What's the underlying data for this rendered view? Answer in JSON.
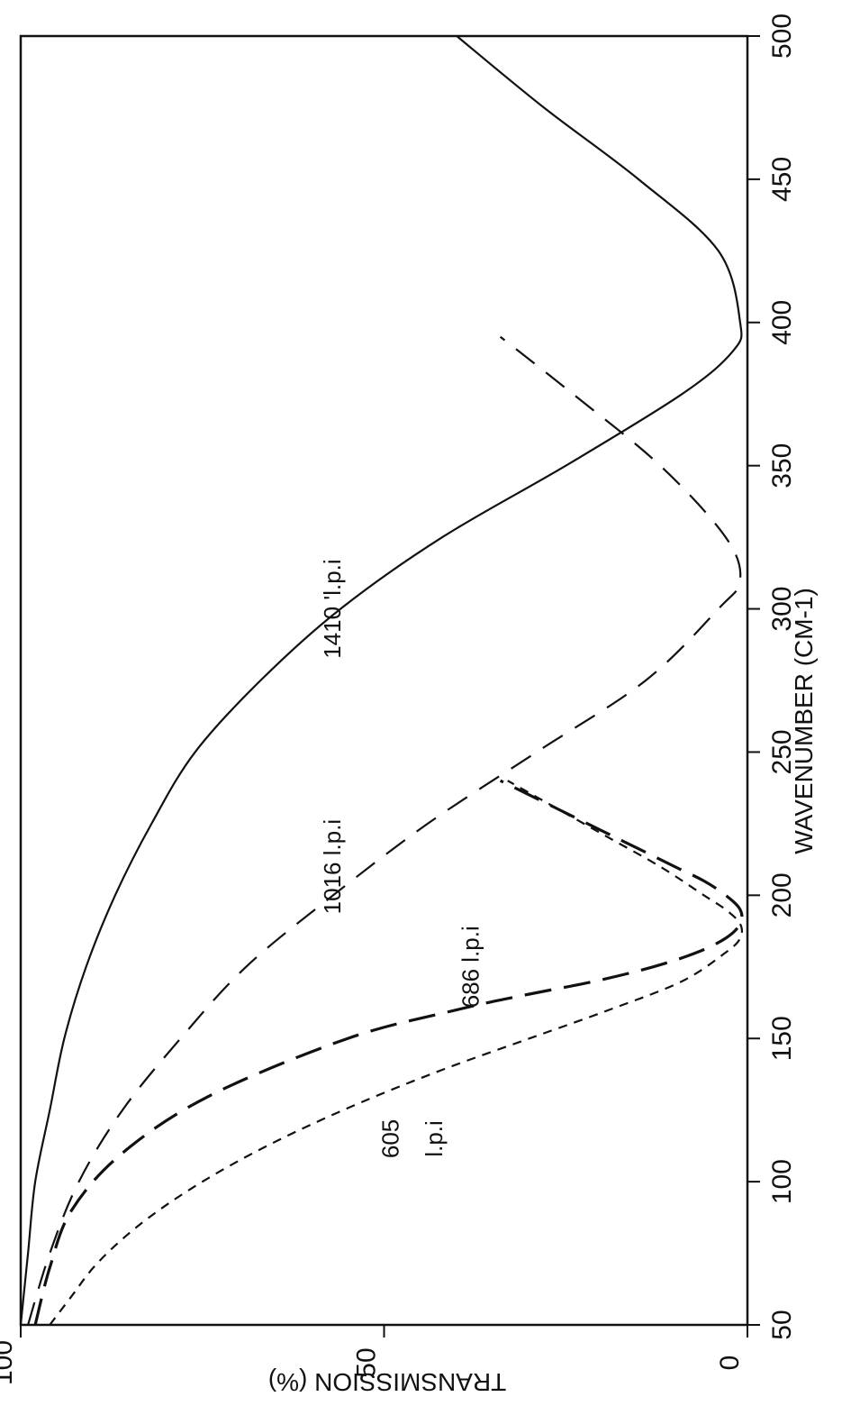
{
  "chart_data": {
    "type": "line",
    "orientation": "rotated 90 degrees counter-clockwise",
    "xlabel": "WAVENUMBER (CM-1)",
    "ylabel": "TRANSMISSION (%)",
    "xlim": [
      50,
      500
    ],
    "ylim": [
      0,
      100
    ],
    "x_ticks": [
      "50",
      "100",
      "150",
      "200",
      "250",
      "300",
      "350",
      "400",
      "450",
      "500"
    ],
    "y_ticks": [
      "0",
      "50",
      "100"
    ],
    "grid": false,
    "legend": "none (curves labeled directly)",
    "series": [
      {
        "name": "605 l.p.i",
        "style": "short-dash",
        "x": [
          50,
          60,
          70,
          80,
          90,
          100,
          110,
          120,
          130,
          140,
          150,
          160,
          170,
          180,
          185,
          190,
          195,
          200,
          210,
          220,
          230,
          240
        ],
        "y": [
          96,
          93,
          90,
          86,
          81,
          75,
          68,
          60,
          51,
          41,
          30,
          19,
          9,
          3,
          1,
          1,
          3,
          6,
          12,
          19,
          26,
          33
        ]
      },
      {
        "name": "686 l.p.i",
        "style": "long-dash",
        "x": [
          50,
          70,
          90,
          110,
          130,
          150,
          160,
          165,
          170,
          175,
          180,
          185,
          190,
          195,
          200,
          205,
          210,
          220,
          230,
          240
        ],
        "y": [
          98,
          96,
          93,
          86,
          74,
          55,
          40,
          31,
          21,
          13,
          7,
          3,
          1,
          1,
          3,
          6,
          10,
          18,
          26,
          34
        ]
      },
      {
        "name": "1016 l.p.i",
        "style": "dash",
        "x": [
          50,
          75,
          100,
          125,
          150,
          175,
          200,
          225,
          250,
          275,
          300,
          310,
          325,
          350,
          375,
          395
        ],
        "y": [
          99,
          96,
          92,
          86,
          78,
          69,
          57,
          44,
          29,
          14,
          4,
          1,
          3,
          12,
          24,
          34
        ]
      },
      {
        "name": "1410 l.p.i",
        "style": "solid",
        "x": [
          50,
          75,
          100,
          125,
          150,
          175,
          200,
          225,
          250,
          275,
          300,
          325,
          350,
          375,
          390,
          400,
          425,
          450,
          475,
          500
        ],
        "y": [
          100,
          99,
          98,
          96,
          94,
          91,
          87,
          82,
          76,
          67,
          56,
          42,
          25,
          9,
          2,
          1,
          4,
          15,
          28,
          40
        ]
      }
    ],
    "curve_labels": {
      "s605_line1": "605",
      "s605_line2": "l.p.i",
      "s686": "686 l.p.i",
      "s1016": "1016 l.p.i",
      "s1410": "1410 'l.p.i"
    }
  }
}
